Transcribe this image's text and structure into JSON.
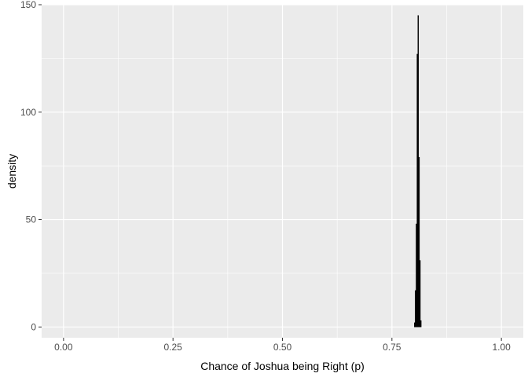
{
  "chart_data": {
    "type": "histogram",
    "title": "",
    "xlabel": "Chance of Joshua being Right (p)",
    "ylabel": "density",
    "xlim": [
      -0.05,
      1.05
    ],
    "ylim": [
      -5,
      150
    ],
    "x_ticks": [
      {
        "value": 0.0,
        "label": "0.00"
      },
      {
        "value": 0.25,
        "label": "0.25"
      },
      {
        "value": 0.5,
        "label": "0.50"
      },
      {
        "value": 0.75,
        "label": "0.75"
      },
      {
        "value": 1.0,
        "label": "1.00"
      }
    ],
    "y_ticks": [
      {
        "value": 0,
        "label": "0"
      },
      {
        "value": 50,
        "label": "50"
      },
      {
        "value": 100,
        "label": "100"
      },
      {
        "value": 150,
        "label": "150"
      }
    ],
    "grid": true,
    "bars": [
      {
        "x0": 0.801,
        "x1": 0.803,
        "density": 2
      },
      {
        "x0": 0.803,
        "x1": 0.805,
        "density": 17
      },
      {
        "x0": 0.805,
        "x1": 0.807,
        "density": 48
      },
      {
        "x0": 0.807,
        "x1": 0.809,
        "density": 127
      },
      {
        "x0": 0.809,
        "x1": 0.811,
        "density": 145
      },
      {
        "x0": 0.811,
        "x1": 0.813,
        "density": 79
      },
      {
        "x0": 0.813,
        "x1": 0.815,
        "density": 31
      },
      {
        "x0": 0.815,
        "x1": 0.817,
        "density": 3
      }
    ],
    "colors": {
      "panel": "#ebebeb",
      "grid_major": "#ffffff",
      "bar_fill": "#000000",
      "tick": "#333333"
    }
  }
}
